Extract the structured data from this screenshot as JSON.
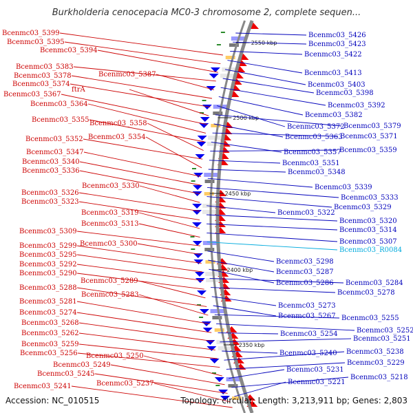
{
  "title": "Burkholderia cenocepacia MC0-3 chromosome 2, complete sequen...",
  "accession": "Accession: NC_010515",
  "topology": "Topology: circular; Length: 3,213,911 bp; Genes: 2,803",
  "colors": {
    "left_labels": "#cc0000",
    "right_labels": "#0000bb",
    "rna_label": "#00aadd",
    "forward_features": "#ee0000",
    "reverse_features": "#0000ee",
    "backbone": "#888888"
  },
  "ticks": [
    "2550 kbp",
    "2500 kbp",
    "2450 kbp",
    "2400 kbp",
    "2350 kbp"
  ],
  "left_labels": [
    "Bcenmc03_5399",
    "Bcenmc03_5395",
    "Bcenmc03_5394",
    "Bcenmc03_5383",
    "Bcenmc03_5387",
    "Bcenmc03_5378",
    "Bcenmc03_5374",
    "ftrA",
    "Bcenmc03_5367",
    "Bcenmc03_5364",
    "Bcenmc03_5355",
    "Bcenmc03_5358",
    "Bcenmc03_5352",
    "Bcenmc03_5354",
    "Bcenmc03_5347",
    "Bcenmc03_5340",
    "Bcenmc03_5336",
    "Bcenmc03_5330",
    "Bcenmc03_5326",
    "Bcenmc03_5323",
    "Bcenmc03_5319",
    "Bcenmc03_5313",
    "Bcenmc03_5309",
    "Bcenmc03_5300",
    "Bcenmc03_5299",
    "Bcenmc03_5295",
    "Bcenmc03_5292",
    "Bcenmc03_5290",
    "Bcenmc03_5289",
    "Bcenmc03_5288",
    "Bcenmc03_5283",
    "Bcenmc03_5281",
    "Bcenmc03_5274",
    "Bcenmc03_5268",
    "Bcenmc03_5262",
    "Bcenmc03_5259",
    "Bcenmc03_5256",
    "Bcenmc03_5250",
    "Bcenmc03_5249",
    "Bcenmc03_5245",
    "Bcenmc03_5237",
    "Bcenmc03_5241"
  ],
  "right_labels": [
    "Bcenmc03_5426",
    "Bcenmc03_5423",
    "Bcenmc03_5422",
    "Bcenmc03_5413",
    "Bcenmc03_5403",
    "Bcenmc03_5398",
    "Bcenmc03_5392",
    "Bcenmc03_5382",
    "Bcenmc03_5372",
    "Bcenmc03_5379",
    "Bcenmc03_5363",
    "Bcenmc03_5371",
    "Bcenmc03_5357",
    "Bcenmc03_5359",
    "Bcenmc03_5351",
    "Bcenmc03_5348",
    "Bcenmc03_5339",
    "Bcenmc03_5333",
    "Bcenmc03_5329",
    "Bcenmc03_5322",
    "Bcenmc03_5320",
    "Bcenmc03_5314",
    "Bcenmc03_5307",
    "Bcenmc03_R0084",
    "Bcenmc03_5298",
    "Bcenmc03_5287",
    "Bcenmc03_5286",
    "Bcenmc03_5284",
    "Bcenmc03_5278",
    "Bcenmc03_5273",
    "Bcenmc03_5267",
    "Bcenmc03_5255",
    "Bcenmc03_5252",
    "Bcenmc03_5254",
    "Bcenmc03_5251",
    "Bcenmc03_5240",
    "Bcenmc03_5238",
    "Bcenmc03_5229",
    "Bcenmc03_5231",
    "Bcenmc03_5218",
    "Bcenmc03_5221"
  ]
}
